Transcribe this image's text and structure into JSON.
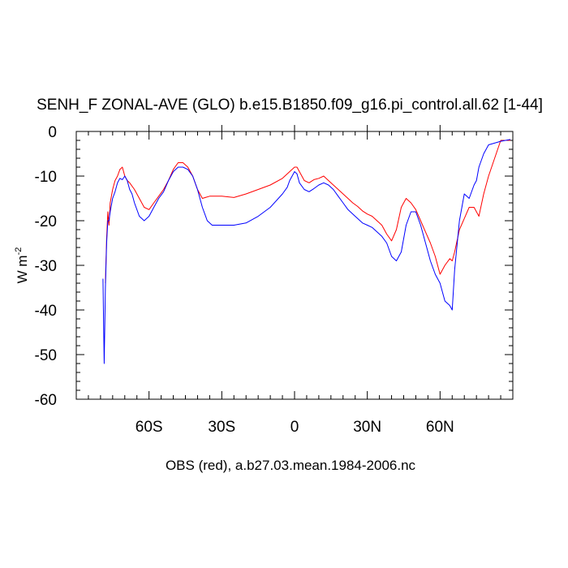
{
  "chart_data": {
    "type": "line",
    "title": "SENH_F ZONAL-AVE (GLO) b.e15.B1850.f09_g16.pi_control.all.62 [1-44]",
    "ylabel": "W m",
    "ylabel_superscript": "-2",
    "caption": "OBS (red), a.b27.03.mean.1984-2006.nc",
    "xlim": [
      -90,
      90
    ],
    "ylim": [
      -60,
      0
    ],
    "x_ticks": [
      {
        "value": -60,
        "label": "60S"
      },
      {
        "value": -30,
        "label": "30S"
      },
      {
        "value": 0,
        "label": "0"
      },
      {
        "value": 30,
        "label": "30N"
      },
      {
        "value": 60,
        "label": "60N"
      }
    ],
    "y_ticks": [
      {
        "value": 0,
        "label": "0"
      },
      {
        "value": -10,
        "label": "-10"
      },
      {
        "value": -20,
        "label": "-20"
      },
      {
        "value": -30,
        "label": "-30"
      },
      {
        "value": -40,
        "label": "-40"
      },
      {
        "value": -50,
        "label": "-50"
      },
      {
        "value": -60,
        "label": "-60"
      }
    ],
    "grid": false,
    "series": [
      {
        "color": "#ff0000",
        "x": [
          -78,
          -77.5,
          -77,
          -76.5,
          -76,
          -75,
          -74,
          -73,
          -72,
          -71,
          -70,
          -69,
          -68,
          -66,
          -64,
          -62,
          -60,
          -58,
          -56,
          -54,
          -52,
          -50,
          -48,
          -46,
          -44,
          -42,
          -40,
          -38,
          -35,
          -30,
          -25,
          -20,
          -15,
          -10,
          -5,
          -2,
          0,
          1,
          2,
          4,
          6,
          8,
          10,
          12,
          14,
          16,
          18,
          20,
          22,
          24,
          26,
          28,
          30,
          32,
          34,
          36,
          38,
          40,
          42,
          44,
          46,
          48,
          50,
          52,
          54,
          56,
          58,
          60,
          62,
          64,
          65,
          66,
          68,
          70,
          72,
          74,
          76,
          78,
          80,
          85,
          89
        ],
        "y": [
          -34,
          -24,
          -18,
          -21,
          -16,
          -13,
          -11,
          -10,
          -8.5,
          -8,
          -10,
          -11,
          -11.5,
          -13,
          -15,
          -17,
          -17.5,
          -16,
          -14.5,
          -13,
          -11,
          -8.5,
          -7,
          -7,
          -8,
          -10,
          -13,
          -15,
          -14.5,
          -14.5,
          -14.8,
          -14,
          -13,
          -12,
          -10.5,
          -9,
          -8,
          -8,
          -9,
          -11,
          -11.5,
          -10.8,
          -10.5,
          -10,
          -11,
          -12,
          -13,
          -14,
          -15,
          -16,
          -16.8,
          -17.8,
          -18.5,
          -19,
          -20,
          -21,
          -23,
          -24.5,
          -22,
          -17,
          -15,
          -16,
          -17.5,
          -20,
          -22.5,
          -25,
          -28,
          -32,
          -30,
          -28.5,
          -29,
          -27,
          -22,
          -19.5,
          -17,
          -17,
          -19,
          -14,
          -10,
          -2,
          -2
        ]
      },
      {
        "color": "#0000ff",
        "x": [
          -79,
          -78.5,
          -78,
          -77.5,
          -77,
          -76.5,
          -76,
          -75,
          -74,
          -73,
          -72,
          -71,
          -70,
          -69,
          -68,
          -67,
          -66,
          -64,
          -62,
          -60,
          -58,
          -56,
          -54,
          -52,
          -50,
          -48,
          -46,
          -44,
          -42,
          -40,
          -38,
          -36,
          -34,
          -30,
          -25,
          -20,
          -15,
          -10,
          -5,
          -3,
          -2,
          -1,
          0,
          1,
          2,
          4,
          6,
          8,
          10,
          12,
          14,
          16,
          18,
          20,
          22,
          24,
          26,
          28,
          30,
          32,
          34,
          36,
          38,
          40,
          42,
          44,
          46,
          48,
          50,
          52,
          54,
          56,
          58,
          60,
          62,
          64,
          65,
          66,
          68,
          70,
          72,
          74,
          75,
          76,
          78,
          80,
          85,
          89
        ],
        "y": [
          -33,
          -52,
          -35,
          -25,
          -20,
          -20,
          -18,
          -15,
          -13.5,
          -11.5,
          -10.5,
          -10.8,
          -10,
          -11,
          -13,
          -14,
          -16,
          -19,
          -20,
          -19,
          -17,
          -15,
          -13.5,
          -11,
          -9,
          -8,
          -8,
          -8.5,
          -10,
          -13,
          -17,
          -20,
          -21,
          -21,
          -21,
          -20.5,
          -19,
          -17,
          -14,
          -12.5,
          -11,
          -10,
          -9,
          -9.5,
          -11.5,
          -13,
          -13.5,
          -12.8,
          -12,
          -11.5,
          -12,
          -13,
          -14.5,
          -16,
          -17.5,
          -18.5,
          -19.5,
          -20.5,
          -21,
          -21.5,
          -22.5,
          -23.5,
          -25,
          -28,
          -29,
          -27,
          -21,
          -18,
          -18,
          -21,
          -25,
          -29,
          -32,
          -34,
          -38,
          -39,
          -40,
          -31,
          -20,
          -14,
          -15,
          -12,
          -11,
          -8,
          -5,
          -3,
          -2.2,
          -1.8
        ]
      }
    ]
  }
}
